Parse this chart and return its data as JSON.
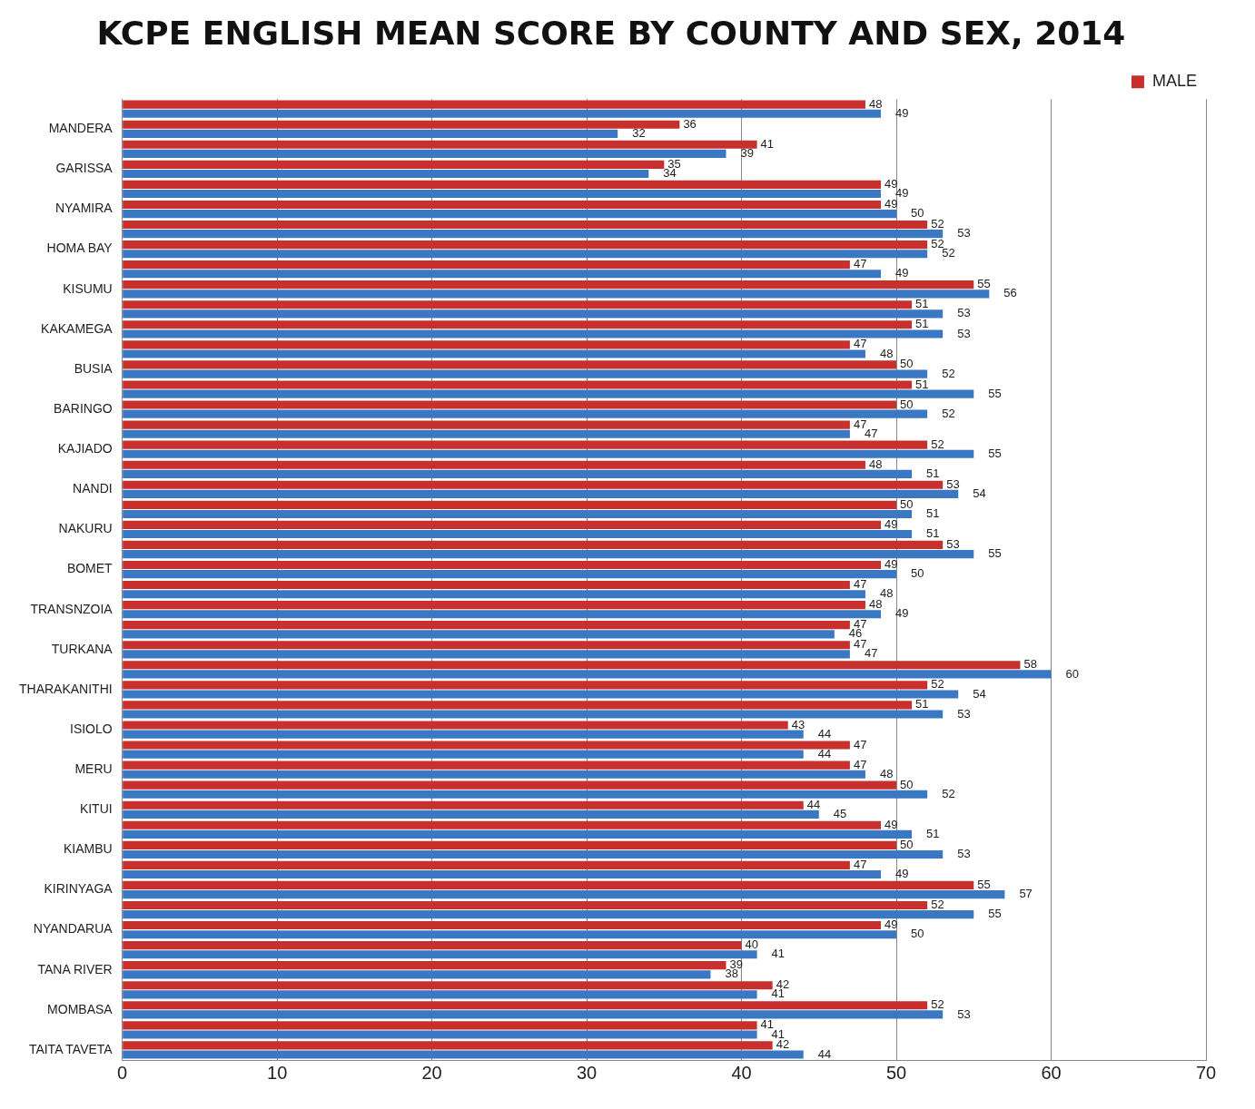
{
  "chart_data": {
    "type": "bar",
    "orientation": "horizontal",
    "title": "KCPE ENGLISH MEAN SCORE BY COUNTY AND SEX, 2014",
    "categories": [
      null,
      "MANDERA",
      null,
      "GARISSA",
      null,
      "NYAMIRA",
      null,
      "HOMA BAY",
      null,
      "KISUMU",
      null,
      "KAKAMEGA",
      null,
      "BUSIA",
      null,
      "BARINGO",
      null,
      "KAJIADO",
      null,
      "NANDI",
      null,
      "NAKURU",
      null,
      "BOMET",
      null,
      "TRANSNZOIA",
      null,
      "TURKANA",
      null,
      "THARAKANITHI",
      null,
      "ISIOLO",
      null,
      "MERU",
      null,
      "KITUI",
      null,
      "KIAMBU",
      null,
      "KIRINYAGA",
      null,
      "NYANDARUA",
      null,
      "TANA RIVER",
      null,
      "MOMBASA",
      null,
      "TAITA TAVETA"
    ],
    "series": [
      {
        "name": "MALE",
        "color": "#c8302e",
        "values": [
          48,
          36,
          41,
          35,
          49,
          49,
          52,
          52,
          47,
          55,
          51,
          51,
          47,
          50,
          51,
          50,
          47,
          52,
          48,
          53,
          50,
          49,
          53,
          49,
          47,
          48,
          47,
          47,
          58,
          52,
          51,
          43,
          47,
          47,
          50,
          44,
          49,
          50,
          47,
          55,
          52,
          49,
          40,
          39,
          42,
          52,
          41,
          42
        ]
      },
      {
        "color": "#3a78c4",
        "values": [
          49,
          32,
          39,
          34,
          49,
          50,
          53,
          52,
          49,
          56,
          53,
          53,
          48,
          52,
          55,
          52,
          47,
          55,
          51,
          54,
          51,
          51,
          55,
          50,
          48,
          49,
          46,
          47,
          60,
          54,
          53,
          44,
          44,
          48,
          52,
          45,
          51,
          53,
          49,
          57,
          55,
          50,
          41,
          38,
          41,
          53,
          41,
          44
        ]
      }
    ],
    "xlim": [
      0,
      70
    ],
    "xticks": [
      0,
      10,
      20,
      30,
      40,
      50,
      60,
      70
    ],
    "grid": "x",
    "legend": "top right",
    "data_labels": true
  }
}
